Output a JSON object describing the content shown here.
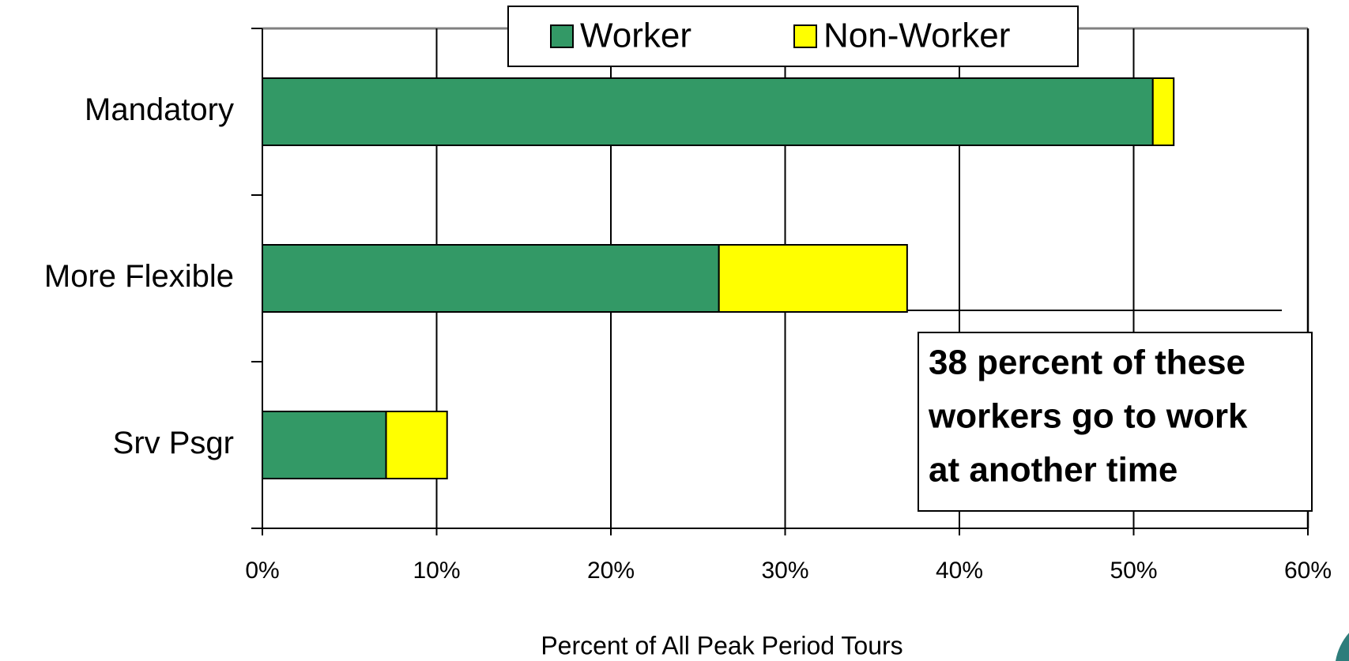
{
  "chart_data": {
    "type": "stacked-bar-horizontal",
    "categories": [
      "Mandatory",
      "More Flexible",
      "Srv Psgr"
    ],
    "series": [
      {
        "name": "Worker",
        "color": "#339966",
        "values": [
          51.1,
          26.2,
          7.1
        ]
      },
      {
        "name": "Non-Worker",
        "color": "#ffff00",
        "values": [
          1.2,
          10.8,
          3.5
        ]
      }
    ],
    "xlim": [
      0,
      60
    ],
    "xticks": [
      {
        "value": 0,
        "label": "0%"
      },
      {
        "value": 10,
        "label": "10%"
      },
      {
        "value": 20,
        "label": "20%"
      },
      {
        "value": 30,
        "label": "30%"
      },
      {
        "value": 40,
        "label": "40%"
      },
      {
        "value": 50,
        "label": "50%"
      },
      {
        "value": 60,
        "label": "60%"
      }
    ],
    "xlabel": "Percent of All Peak Period Tours",
    "grid": true,
    "legend": "top",
    "annotation": [
      "38 percent of these",
      "workers go to work",
      "at another time"
    ]
  }
}
